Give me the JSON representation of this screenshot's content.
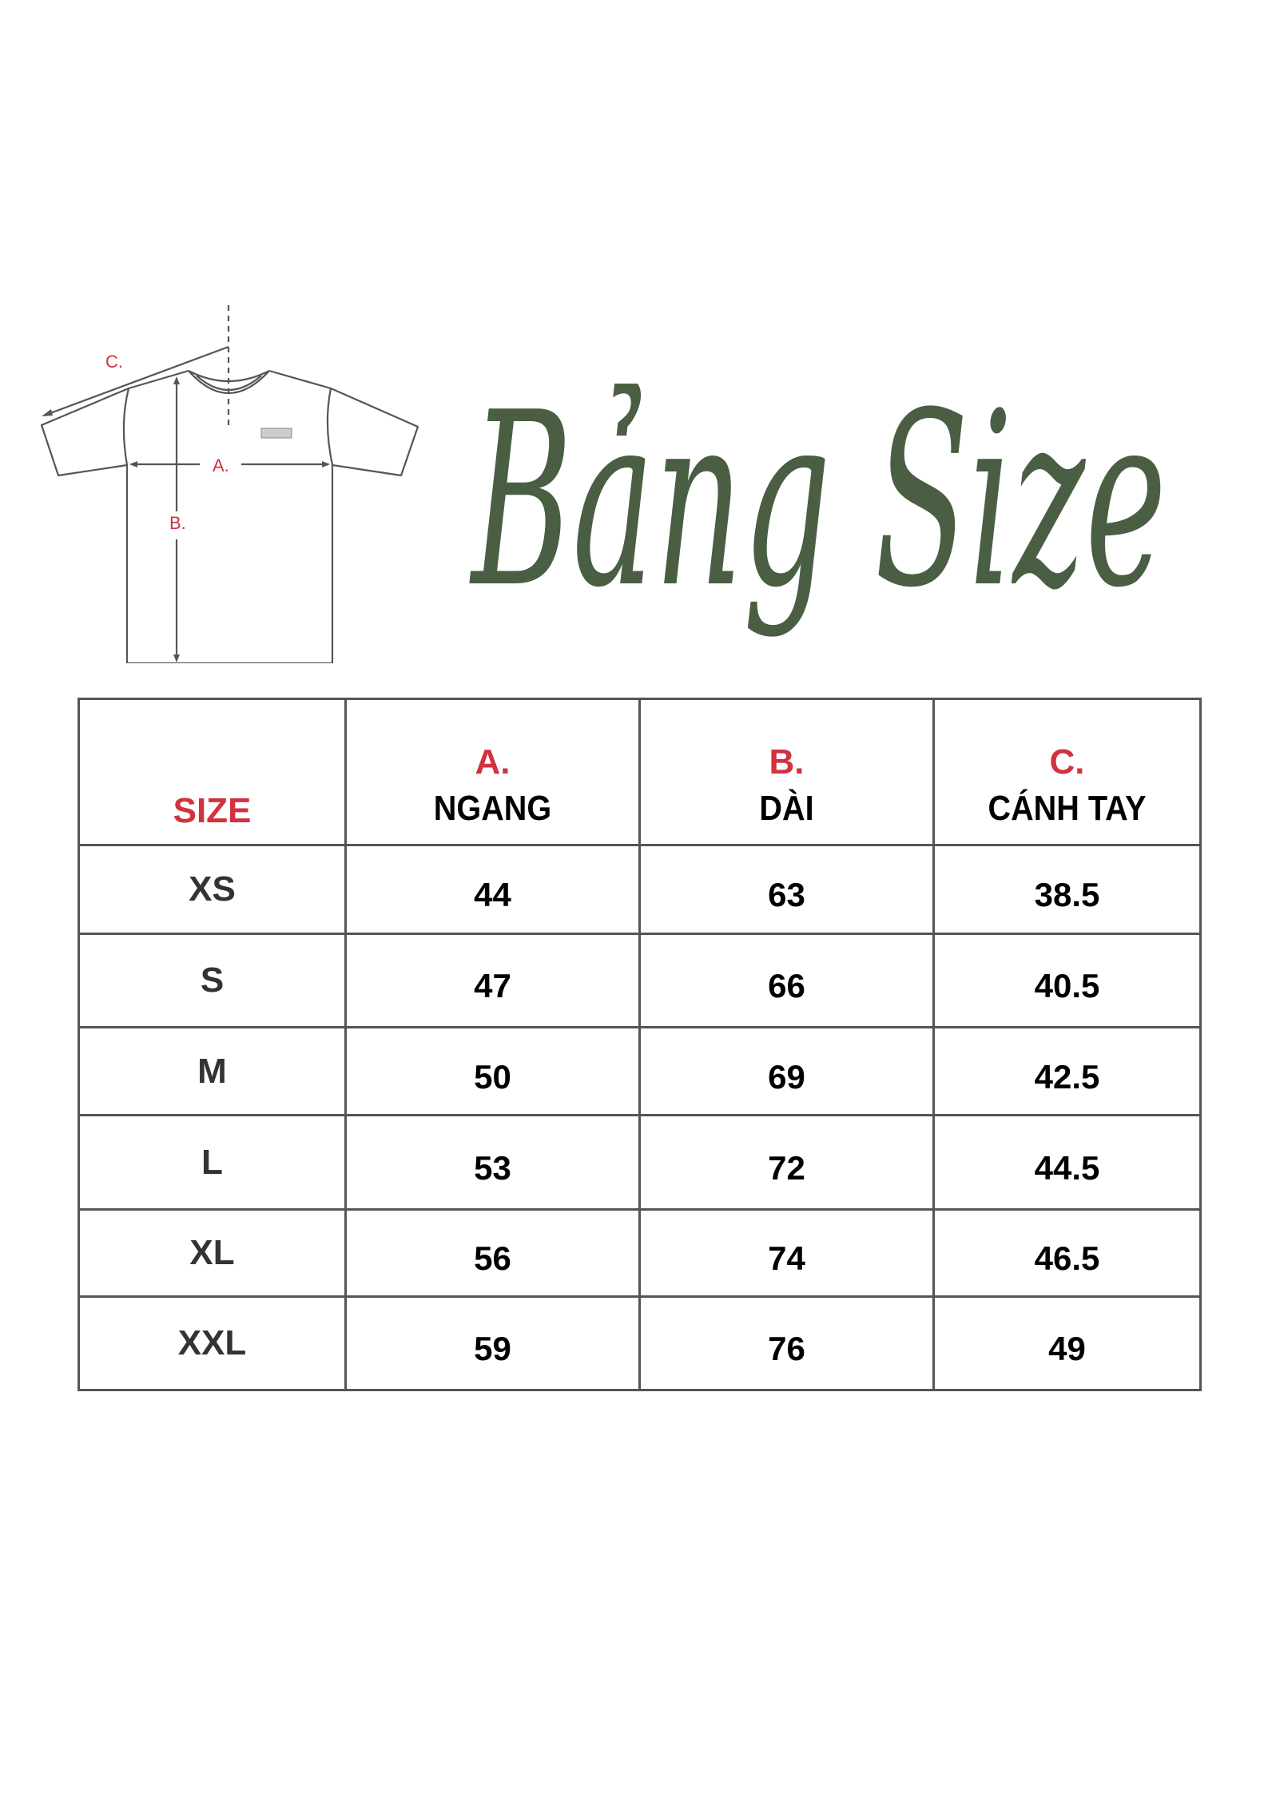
{
  "title": "Bảng Size",
  "title_color": "#4a5e44",
  "accent_color": "#d2323e",
  "diagram": {
    "label_a": "A.",
    "label_b": "B.",
    "label_c": "C."
  },
  "table": {
    "headers": [
      {
        "letter": "",
        "name": "SIZE"
      },
      {
        "letter": "A.",
        "name": "NGANG"
      },
      {
        "letter": "B.",
        "name": "DÀI"
      },
      {
        "letter": "C.",
        "name": "CÁNH TAY"
      }
    ],
    "rows": [
      {
        "size": "XS",
        "ngang": "44",
        "dai": "63",
        "canh_tay": "38.5"
      },
      {
        "size": "S",
        "ngang": "47",
        "dai": "66",
        "canh_tay": "40.5"
      },
      {
        "size": "M",
        "ngang": "50",
        "dai": "69",
        "canh_tay": "42.5"
      },
      {
        "size": "L",
        "ngang": "53",
        "dai": "72",
        "canh_tay": "44.5"
      },
      {
        "size": "XL",
        "ngang": "56",
        "dai": "74",
        "canh_tay": "46.5"
      },
      {
        "size": "XXL",
        "ngang": "59",
        "dai": "76",
        "canh_tay": "49"
      }
    ]
  }
}
